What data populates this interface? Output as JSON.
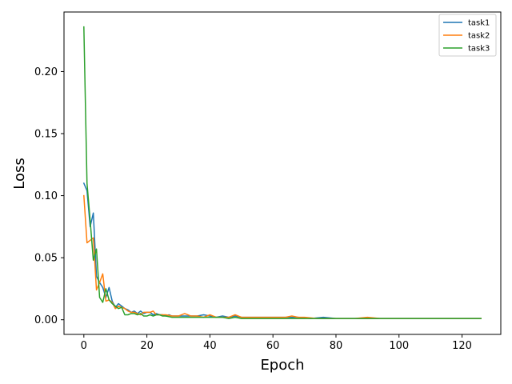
{
  "chart_data": {
    "type": "line",
    "xlabel": "Epoch",
    "ylabel": "Loss",
    "xlim": [
      -6.3,
      132.3
    ],
    "ylim": [
      -0.0118,
      0.248
    ],
    "xticks": [
      0,
      20,
      40,
      60,
      80,
      100,
      120
    ],
    "xtick_labels": [
      "0",
      "20",
      "40",
      "60",
      "80",
      "100",
      "120"
    ],
    "yticks": [
      0.0,
      0.05,
      0.1,
      0.15,
      0.2
    ],
    "ytick_labels": [
      "0.00",
      "0.05",
      "0.10",
      "0.15",
      "0.20"
    ],
    "grid": false,
    "legend_position": "top-right",
    "series": [
      {
        "name": "task1",
        "color": "#1f77b4",
        "x": [
          0,
          1,
          2,
          3,
          4,
          5,
          6,
          7,
          8,
          9,
          10,
          11,
          12,
          13,
          14,
          15,
          16,
          17,
          18,
          19,
          20,
          21,
          22,
          23,
          24,
          25,
          26,
          27,
          28,
          29,
          30,
          32,
          34,
          36,
          38,
          40,
          42,
          44,
          46,
          48,
          50,
          52,
          54,
          56,
          58,
          60,
          64,
          68,
          72,
          76,
          80,
          84,
          88,
          92,
          96,
          100,
          104,
          108,
          112,
          116,
          120,
          124,
          126
        ],
        "values": [
          0.11,
          0.104,
          0.075,
          0.086,
          0.035,
          0.03,
          0.026,
          0.018,
          0.026,
          0.015,
          0.01,
          0.013,
          0.011,
          0.009,
          0.008,
          0.006,
          0.007,
          0.005,
          0.007,
          0.005,
          0.006,
          0.006,
          0.004,
          0.005,
          0.004,
          0.004,
          0.003,
          0.004,
          0.003,
          0.003,
          0.003,
          0.003,
          0.003,
          0.003,
          0.004,
          0.003,
          0.002,
          0.003,
          0.002,
          0.003,
          0.002,
          0.002,
          0.002,
          0.002,
          0.002,
          0.002,
          0.002,
          0.002,
          0.001,
          0.002,
          0.001,
          0.001,
          0.001,
          0.001,
          0.001,
          0.001,
          0.001,
          0.001,
          0.001,
          0.001,
          0.001,
          0.001,
          0.001
        ]
      },
      {
        "name": "task2",
        "color": "#ff7f0e",
        "x": [
          0,
          1,
          2,
          3,
          4,
          5,
          6,
          7,
          8,
          9,
          10,
          11,
          12,
          13,
          14,
          15,
          16,
          17,
          18,
          19,
          20,
          21,
          22,
          23,
          24,
          25,
          26,
          28,
          30,
          32,
          34,
          36,
          38,
          40,
          42,
          44,
          46,
          48,
          50,
          52,
          54,
          56,
          58,
          60,
          62,
          64,
          66,
          68,
          70,
          74,
          78,
          82,
          86,
          90,
          94,
          98,
          102,
          106,
          110,
          114,
          118,
          122,
          126
        ],
        "values": [
          0.1,
          0.062,
          0.064,
          0.066,
          0.024,
          0.03,
          0.037,
          0.015,
          0.016,
          0.014,
          0.009,
          0.011,
          0.01,
          0.009,
          0.007,
          0.006,
          0.006,
          0.005,
          0.004,
          0.006,
          0.006,
          0.006,
          0.007,
          0.004,
          0.004,
          0.004,
          0.004,
          0.003,
          0.003,
          0.005,
          0.003,
          0.003,
          0.002,
          0.004,
          0.002,
          0.002,
          0.002,
          0.004,
          0.002,
          0.002,
          0.002,
          0.002,
          0.002,
          0.002,
          0.002,
          0.002,
          0.003,
          0.002,
          0.002,
          0.001,
          0.001,
          0.001,
          0.001,
          0.002,
          0.001,
          0.001,
          0.001,
          0.001,
          0.001,
          0.001,
          0.001,
          0.001,
          0.001
        ]
      },
      {
        "name": "task3",
        "color": "#2ca02c",
        "x": [
          0,
          1,
          2,
          3,
          4,
          5,
          6,
          7,
          8,
          9,
          10,
          11,
          12,
          13,
          14,
          15,
          16,
          17,
          18,
          19,
          20,
          21,
          22,
          23,
          24,
          25,
          26,
          28,
          30,
          32,
          34,
          36,
          38,
          40,
          42,
          44,
          46,
          48,
          50,
          52,
          54,
          56,
          58,
          60,
          64,
          68,
          72,
          76,
          80,
          84,
          88,
          92,
          96,
          100,
          104,
          108,
          112,
          116,
          120,
          124,
          126
        ],
        "values": [
          0.236,
          0.11,
          0.08,
          0.048,
          0.057,
          0.018,
          0.014,
          0.025,
          0.016,
          0.013,
          0.011,
          0.009,
          0.01,
          0.004,
          0.004,
          0.005,
          0.005,
          0.004,
          0.005,
          0.003,
          0.003,
          0.004,
          0.003,
          0.004,
          0.004,
          0.003,
          0.003,
          0.002,
          0.002,
          0.002,
          0.002,
          0.002,
          0.002,
          0.002,
          0.002,
          0.002,
          0.001,
          0.002,
          0.001,
          0.001,
          0.001,
          0.001,
          0.001,
          0.001,
          0.001,
          0.001,
          0.001,
          0.001,
          0.001,
          0.001,
          0.001,
          0.001,
          0.001,
          0.001,
          0.001,
          0.001,
          0.001,
          0.001,
          0.001,
          0.001,
          0.001
        ]
      }
    ]
  }
}
